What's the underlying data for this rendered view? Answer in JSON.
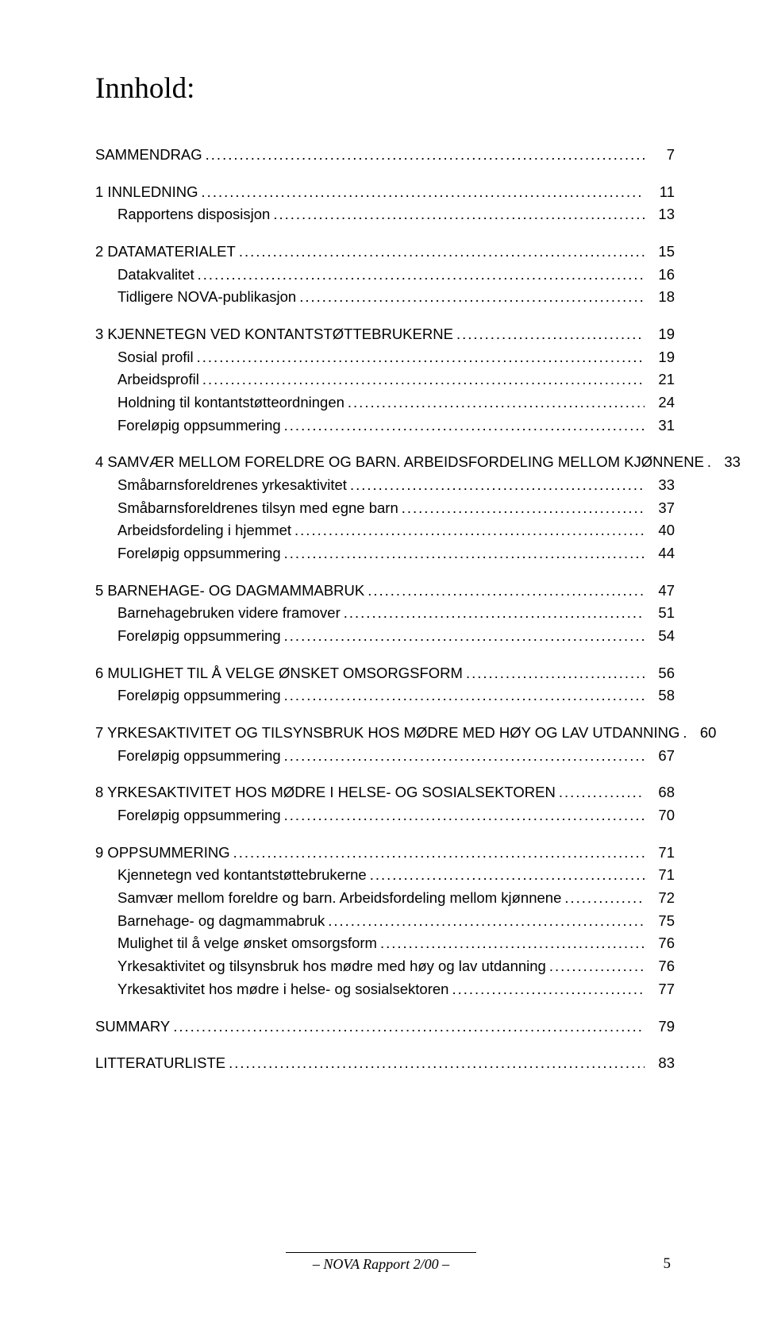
{
  "title": "Innhold:",
  "toc": [
    {
      "type": "section",
      "label_html": "S<span class='caps'>AMMENDRAG</span>",
      "page": "7"
    },
    {
      "type": "gap"
    },
    {
      "type": "section",
      "label_html": "1 I<span class='caps'>NNLEDNING</span>",
      "page": "11"
    },
    {
      "type": "sub",
      "label": "Rapportens disposisjon",
      "page": "13"
    },
    {
      "type": "gap"
    },
    {
      "type": "section",
      "label_html": "2 D<span class='caps'>ATAMATERIALET</span>",
      "page": "15"
    },
    {
      "type": "sub",
      "label": "Datakvalitet",
      "page": "16"
    },
    {
      "type": "sub",
      "label": "Tidligere NOVA-publikasjon",
      "page": "18"
    },
    {
      "type": "gap"
    },
    {
      "type": "section",
      "label_html": "3 K<span class='caps'>JENNETEGN VED KONTANTSTØTTEBRUKERNE</span>",
      "page": "19"
    },
    {
      "type": "sub",
      "label": "Sosial profil",
      "page": "19"
    },
    {
      "type": "sub",
      "label": "Arbeidsprofil",
      "page": "21"
    },
    {
      "type": "sub",
      "label": "Holdning til kontantstøtteordningen",
      "page": "24"
    },
    {
      "type": "sub",
      "label": "Foreløpig oppsummering",
      "page": "31"
    },
    {
      "type": "gap"
    },
    {
      "type": "section",
      "label_html": "4 S<span class='caps'>AMVÆR MELLOM FORELDRE OG BARN</span>. A<span class='caps'>RBEIDSFORDELING MELLOM KJØNNENE</span>",
      "page": "33"
    },
    {
      "type": "sub",
      "label": "Småbarnsforeldrenes yrkesaktivitet",
      "page": "33"
    },
    {
      "type": "sub",
      "label": "Småbarnsforeldrenes tilsyn med egne barn",
      "page": "37"
    },
    {
      "type": "sub",
      "label": "Arbeidsfordeling i hjemmet",
      "page": "40"
    },
    {
      "type": "sub",
      "label": "Foreløpig oppsummering",
      "page": "44"
    },
    {
      "type": "gap"
    },
    {
      "type": "section",
      "label_html": "5 B<span class='caps'>ARNEHAGE- OG DAGMAMMABRUK</span>",
      "page": "47"
    },
    {
      "type": "sub",
      "label": "Barnehagebruken videre framover",
      "page": "51"
    },
    {
      "type": "sub",
      "label": "Foreløpig oppsummering",
      "page": "54"
    },
    {
      "type": "gap"
    },
    {
      "type": "section",
      "label_html": "6 M<span class='caps'>ULIGHET TIL Å VELGE ØNSKET OMSORGSFORM</span>",
      "page": "56"
    },
    {
      "type": "sub",
      "label": "Foreløpig oppsummering",
      "page": "58"
    },
    {
      "type": "gap"
    },
    {
      "type": "section",
      "label_html": "7 Y<span class='caps'>RKESAKTIVITET OG TILSYNSBRUK HOS MØDRE MED HØY OG LAV UTDANNING</span>",
      "page": "60"
    },
    {
      "type": "sub",
      "label": "Foreløpig oppsummering",
      "page": "67"
    },
    {
      "type": "gap"
    },
    {
      "type": "section",
      "label_html": "8 Y<span class='caps'>RKESAKTIVITET HOS MØDRE I  HELSE- OG SOSIALSEKTOREN</span>",
      "page": "68"
    },
    {
      "type": "sub",
      "label": "Foreløpig oppsummering",
      "page": "70"
    },
    {
      "type": "gap"
    },
    {
      "type": "section",
      "label_html": "9 O<span class='caps'>PPSUMMERING</span>",
      "page": "71"
    },
    {
      "type": "sub",
      "label": "Kjennetegn ved kontantstøttebrukerne",
      "page": "71"
    },
    {
      "type": "sub",
      "label": "Samvær mellom foreldre og barn. Arbeidsfordeling mellom kjønnene",
      "page": "72"
    },
    {
      "type": "sub",
      "label": "Barnehage- og dagmammabruk",
      "page": "75"
    },
    {
      "type": "sub",
      "label": "Mulighet til å velge ønsket omsorgsform",
      "page": "76"
    },
    {
      "type": "sub",
      "label": "Yrkesaktivitet og tilsynsbruk hos mødre med  høy og lav utdanning",
      "page": "76"
    },
    {
      "type": "sub",
      "label": "Yrkesaktivitet hos mødre i helse- og sosialsektoren",
      "page": "77"
    },
    {
      "type": "gap"
    },
    {
      "type": "section",
      "label_html": "S<span class='caps'>UMMARY</span>",
      "page": "79"
    },
    {
      "type": "gap"
    },
    {
      "type": "section",
      "label_html": "L<span class='caps'>ITTERATURLISTE</span>",
      "page": "83"
    }
  ],
  "footer": {
    "text": "– NOVA Rapport 2/00 –",
    "pagenum": "5"
  }
}
